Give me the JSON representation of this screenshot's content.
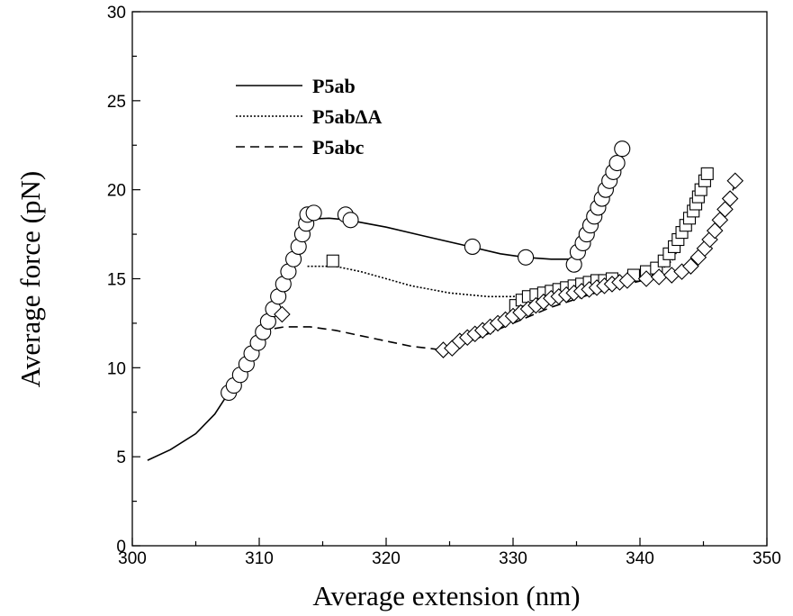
{
  "chart_data": {
    "type": "scatter",
    "title": "",
    "xlabel": "Average extension (nm)",
    "ylabel": "Average force (pN)",
    "xlim": [
      300,
      350
    ],
    "ylim": [
      0,
      30
    ],
    "x_ticks": [
      300,
      310,
      320,
      330,
      340,
      350
    ],
    "y_ticks": [
      0,
      5,
      10,
      15,
      20,
      25,
      30
    ],
    "x_tick_labels": [
      "300",
      "310",
      "320",
      "330",
      "340",
      "350"
    ],
    "y_tick_labels": [
      "0",
      "5",
      "10",
      "15",
      "20",
      "25",
      "30"
    ],
    "grid": false,
    "legend_position": "top-left",
    "series": [
      {
        "name": "P5ab",
        "line_style": "solid",
        "marker": "circle",
        "line": [
          [
            301.2,
            4.8
          ],
          [
            303,
            5.4
          ],
          [
            305,
            6.3
          ],
          [
            306.5,
            7.4
          ],
          [
            307.5,
            8.5
          ],
          [
            309,
            10.2
          ],
          [
            310.5,
            12.2
          ],
          [
            312,
            14.9
          ],
          [
            313.2,
            17.5
          ],
          [
            314,
            18.35
          ],
          [
            315.5,
            18.4
          ],
          [
            317,
            18.3
          ],
          [
            320,
            17.9
          ],
          [
            323,
            17.4
          ],
          [
            326,
            16.9
          ],
          [
            329,
            16.4
          ],
          [
            331,
            16.2
          ],
          [
            333,
            16.1
          ],
          [
            334.5,
            16.1
          ],
          [
            335,
            16.5
          ],
          [
            336,
            18.2
          ],
          [
            337,
            19.9
          ],
          [
            338,
            21.4
          ],
          [
            338.7,
            22.2
          ]
        ],
        "points": [
          [
            307.6,
            8.6
          ],
          [
            308.0,
            9.0
          ],
          [
            308.5,
            9.6
          ],
          [
            309.0,
            10.2
          ],
          [
            309.4,
            10.8
          ],
          [
            309.9,
            11.4
          ],
          [
            310.3,
            12.0
          ],
          [
            310.7,
            12.6
          ],
          [
            311.1,
            13.3
          ],
          [
            311.5,
            14.0
          ],
          [
            311.9,
            14.7
          ],
          [
            312.3,
            15.4
          ],
          [
            312.7,
            16.1
          ],
          [
            313.1,
            16.8
          ],
          [
            313.4,
            17.5
          ],
          [
            313.7,
            18.1
          ],
          [
            313.8,
            18.6
          ],
          [
            314.3,
            18.7
          ],
          [
            316.8,
            18.6
          ],
          [
            317.2,
            18.3
          ],
          [
            326.8,
            16.8
          ],
          [
            331.0,
            16.2
          ],
          [
            334.8,
            15.8
          ],
          [
            335.1,
            16.5
          ],
          [
            335.5,
            17.0
          ],
          [
            335.8,
            17.5
          ],
          [
            336.1,
            18.0
          ],
          [
            336.4,
            18.5
          ],
          [
            336.7,
            19.0
          ],
          [
            337.0,
            19.5
          ],
          [
            337.3,
            20.0
          ],
          [
            337.6,
            20.5
          ],
          [
            337.9,
            21.0
          ],
          [
            338.2,
            21.5
          ],
          [
            338.6,
            22.3
          ]
        ]
      },
      {
        "name": "P5abΔA",
        "line_style": "dotted",
        "marker": "square",
        "line": [
          [
            313.8,
            15.7
          ],
          [
            316,
            15.7
          ],
          [
            318,
            15.4
          ],
          [
            320,
            15.0
          ],
          [
            322,
            14.6
          ],
          [
            325,
            14.2
          ],
          [
            328,
            14.0
          ],
          [
            330,
            14.0
          ],
          [
            332,
            14.2
          ],
          [
            335,
            14.5
          ],
          [
            338,
            14.8
          ],
          [
            340,
            15.1
          ],
          [
            341.5,
            15.4
          ],
          [
            342.5,
            16.0
          ],
          [
            343.5,
            17.3
          ],
          [
            344.5,
            18.9
          ],
          [
            345.3,
            20.4
          ]
        ],
        "points": [
          [
            315.8,
            16.0
          ],
          [
            330.2,
            13.5
          ],
          [
            330.7,
            13.8
          ],
          [
            331.2,
            14.0
          ],
          [
            331.8,
            14.1
          ],
          [
            332.4,
            14.2
          ],
          [
            333.0,
            14.3
          ],
          [
            333.6,
            14.4
          ],
          [
            334.2,
            14.5
          ],
          [
            334.8,
            14.6
          ],
          [
            335.4,
            14.7
          ],
          [
            336.0,
            14.8
          ],
          [
            336.6,
            14.9
          ],
          [
            337.2,
            14.9
          ],
          [
            337.8,
            15.0
          ],
          [
            339.5,
            15.2
          ],
          [
            340.5,
            15.4
          ],
          [
            341.3,
            15.6
          ],
          [
            341.9,
            16.0
          ],
          [
            342.3,
            16.4
          ],
          [
            342.7,
            16.8
          ],
          [
            343.0,
            17.2
          ],
          [
            343.3,
            17.6
          ],
          [
            343.6,
            18.0
          ],
          [
            343.9,
            18.4
          ],
          [
            344.2,
            18.8
          ],
          [
            344.4,
            19.2
          ],
          [
            344.6,
            19.6
          ],
          [
            344.8,
            20.0
          ],
          [
            345.1,
            20.5
          ],
          [
            345.3,
            20.9
          ]
        ]
      },
      {
        "name": "P5abc",
        "line_style": "dashed",
        "marker": "diamond",
        "line": [
          [
            311.2,
            12.2
          ],
          [
            312,
            12.3
          ],
          [
            314,
            12.3
          ],
          [
            316,
            12.1
          ],
          [
            318,
            11.8
          ],
          [
            320,
            11.5
          ],
          [
            322,
            11.2
          ],
          [
            324.5,
            11.0
          ],
          [
            327,
            11.6
          ],
          [
            330,
            12.5
          ],
          [
            333,
            13.4
          ],
          [
            336,
            14.1
          ],
          [
            339,
            14.7
          ],
          [
            342,
            15.2
          ],
          [
            343.5,
            15.6
          ],
          [
            344.5,
            16.3
          ],
          [
            345.5,
            17.3
          ],
          [
            346.5,
            18.6
          ],
          [
            347.5,
            20.3
          ]
        ],
        "points": [
          [
            311.8,
            13.0
          ],
          [
            324.5,
            11.0
          ],
          [
            325.2,
            11.1
          ],
          [
            325.8,
            11.5
          ],
          [
            326.4,
            11.7
          ],
          [
            327.0,
            11.9
          ],
          [
            327.6,
            12.1
          ],
          [
            328.2,
            12.3
          ],
          [
            328.8,
            12.5
          ],
          [
            329.4,
            12.7
          ],
          [
            330.0,
            12.9
          ],
          [
            330.6,
            13.1
          ],
          [
            331.2,
            13.3
          ],
          [
            331.8,
            13.5
          ],
          [
            332.4,
            13.7
          ],
          [
            333.0,
            13.9
          ],
          [
            333.6,
            14.0
          ],
          [
            334.2,
            14.1
          ],
          [
            334.8,
            14.2
          ],
          [
            335.4,
            14.3
          ],
          [
            336.0,
            14.4
          ],
          [
            336.6,
            14.5
          ],
          [
            337.2,
            14.6
          ],
          [
            337.8,
            14.7
          ],
          [
            338.4,
            14.8
          ],
          [
            339.0,
            14.9
          ],
          [
            340.5,
            15.0
          ],
          [
            341.5,
            15.1
          ],
          [
            342.5,
            15.2
          ],
          [
            343.3,
            15.4
          ],
          [
            344.0,
            15.7
          ],
          [
            344.6,
            16.2
          ],
          [
            345.1,
            16.7
          ],
          [
            345.5,
            17.2
          ],
          [
            345.9,
            17.7
          ],
          [
            346.3,
            18.3
          ],
          [
            346.7,
            18.9
          ],
          [
            347.1,
            19.5
          ],
          [
            347.5,
            20.5
          ]
        ]
      }
    ]
  }
}
